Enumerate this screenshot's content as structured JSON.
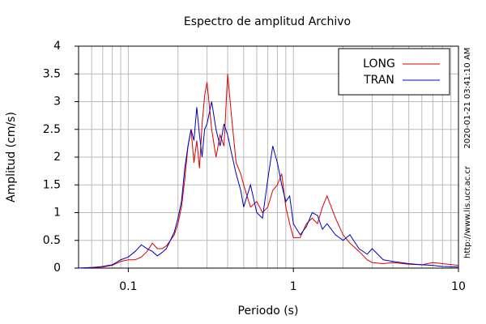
{
  "chart_data": {
    "type": "line",
    "title": "Espectro de amplitud Archivo",
    "x_label": "Periodo (s)",
    "y_label": "Amplitud (cm/s)",
    "annotations": [
      "2020-01-21 03:41:10 AM",
      "http://www.lis.ucr.ac.cr"
    ],
    "x_scale": "log",
    "xlim": [
      0.05,
      10
    ],
    "ylim": [
      0,
      4
    ],
    "xticks": [
      0.1,
      1,
      10
    ],
    "yticks": [
      0,
      0.5,
      1,
      1.5,
      2,
      2.5,
      3,
      3.5,
      4
    ],
    "grid": true,
    "legend": "upper right",
    "x": [
      0.05,
      0.06,
      0.07,
      0.08,
      0.09,
      0.1,
      0.11,
      0.12,
      0.13,
      0.14,
      0.15,
      0.16,
      0.17,
      0.18,
      0.19,
      0.2,
      0.21,
      0.22,
      0.23,
      0.24,
      0.25,
      0.26,
      0.27,
      0.28,
      0.29,
      0.3,
      0.32,
      0.34,
      0.36,
      0.38,
      0.4,
      0.42,
      0.45,
      0.48,
      0.5,
      0.55,
      0.6,
      0.65,
      0.7,
      0.75,
      0.8,
      0.85,
      0.9,
      0.95,
      1.0,
      1.1,
      1.2,
      1.3,
      1.4,
      1.5,
      1.6,
      1.8,
      2.0,
      2.2,
      2.5,
      2.8,
      3.0,
      3.5,
      4,
      5,
      6,
      7,
      8,
      10
    ],
    "series": [
      {
        "name": "LONG",
        "color": "#dd0000",
        "values": [
          0,
          0.01,
          0.02,
          0.05,
          0.12,
          0.15,
          0.15,
          0.2,
          0.3,
          0.45,
          0.35,
          0.35,
          0.4,
          0.5,
          0.6,
          0.8,
          1.1,
          1.6,
          2.2,
          2.5,
          1.9,
          2.3,
          1.8,
          2.6,
          3.1,
          3.35,
          2.5,
          2.0,
          2.4,
          2.2,
          3.5,
          2.8,
          1.9,
          1.7,
          1.5,
          1.1,
          1.2,
          1.0,
          1.1,
          1.4,
          1.5,
          1.7,
          1.1,
          0.8,
          0.55,
          0.55,
          0.8,
          0.9,
          0.8,
          1.1,
          1.3,
          0.9,
          0.6,
          0.45,
          0.3,
          0.15,
          0.1,
          0.08,
          0.1,
          0.07,
          0.06,
          0.1,
          0.08,
          0.05
        ]
      },
      {
        "name": "TRAN",
        "color": "#0000bb",
        "values": [
          0,
          0.01,
          0.03,
          0.06,
          0.15,
          0.2,
          0.3,
          0.42,
          0.35,
          0.3,
          0.22,
          0.28,
          0.35,
          0.5,
          0.65,
          0.9,
          1.2,
          1.8,
          2.2,
          2.5,
          2.3,
          2.9,
          2.4,
          2.0,
          2.5,
          2.6,
          3.0,
          2.5,
          2.2,
          2.6,
          2.4,
          2.1,
          1.7,
          1.4,
          1.1,
          1.5,
          1.0,
          0.9,
          1.6,
          2.2,
          1.9,
          1.5,
          1.2,
          1.3,
          0.8,
          0.6,
          0.75,
          1.0,
          0.95,
          0.7,
          0.8,
          0.6,
          0.5,
          0.6,
          0.35,
          0.25,
          0.35,
          0.15,
          0.12,
          0.08,
          0.06,
          0.05,
          0.03,
          0.02
        ]
      }
    ]
  }
}
